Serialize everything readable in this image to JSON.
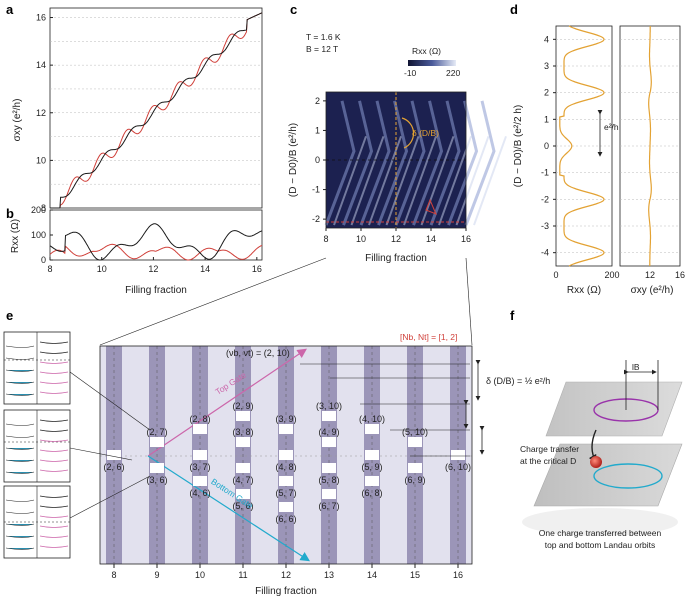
{
  "panels": {
    "a": {
      "label": "a",
      "ylabel": "σxy (e²/h)",
      "yticks": [
        "8",
        "10",
        "12",
        "14",
        "16"
      ]
    },
    "b": {
      "label": "b",
      "ylabel": "Rxx (Ω)",
      "yticks": [
        "0",
        "100",
        "200"
      ],
      "xticks": [
        "8",
        "10",
        "12",
        "14",
        "16"
      ],
      "xlabel": "Filling fraction"
    },
    "c": {
      "label": "c",
      "T": "T = 1.6 K",
      "B": "B = 12 T",
      "cbar_title": "Rxx (Ω)",
      "cbar_min": "-10",
      "cbar_max": "220",
      "ylabel": "(D − D0)/B (e²/h)",
      "yticks": [
        "2",
        "1",
        "0",
        "-1",
        "-2"
      ],
      "xticks": [
        "8",
        "10",
        "12",
        "14",
        "16"
      ],
      "xlabel": "Filling fraction",
      "annotation": "δ (D/B)"
    },
    "d": {
      "label": "d",
      "yticks": [
        "4",
        "3",
        "2",
        "1",
        "0",
        "-1",
        "-2",
        "-3",
        "-4"
      ],
      "ylabel": "(D − D0)/B (e²/2 h)",
      "xlabel_left": "Rxx (Ω)",
      "xlabel_right": "σxy (e²/h)",
      "xticks_left": [
        "0",
        "200"
      ],
      "xticks_right": [
        "12",
        "16"
      ],
      "gap_label": "e²/h"
    },
    "e": {
      "label": "e",
      "legend": "[Nb, Nt] = [1, 2]",
      "top_gate": "Top Gate",
      "bottom_gate": "Bottom Gate",
      "nu_label": "(νb, νt) = (2, 10)",
      "delta": "δ (D/B) = ½ e²/h",
      "xticks": [
        "8",
        "9",
        "10",
        "11",
        "12",
        "13",
        "14",
        "15",
        "16"
      ],
      "xlabel": "Filling fraction",
      "pairs": [
        "(2, 6)",
        "(2, 7)",
        "(3, 6)",
        "(2, 8)",
        "(3, 7)",
        "(4, 6)",
        "(2, 9)",
        "(3, 8)",
        "(4, 7)",
        "(5, 6)",
        "(3, 9)",
        "(4, 8)",
        "(5, 7)",
        "(6, 6)",
        "(3, 10)",
        "(4, 9)",
        "(5, 8)",
        "(6, 7)",
        "(4, 10)",
        "(5, 9)",
        "(6, 8)",
        "(5, 10)",
        "(6, 9)",
        "(6, 10)"
      ]
    },
    "f": {
      "label": "f",
      "lB": "lB",
      "transfer": "Charge transfer at the critical D",
      "caption_1": "One charge transferred between",
      "caption_2": "top and bottom Landau orbits"
    }
  },
  "chart_data": [
    {
      "type": "line",
      "panel": "a",
      "ylabel": "σxy (e²/h)",
      "ylim": [
        8,
        16.4
      ],
      "xlim": [
        8,
        16.2
      ],
      "series": [
        {
          "x": [
            8,
            8.4,
            9,
            10,
            11,
            12,
            13,
            14,
            15,
            15.6,
            16,
            16.2
          ],
          "values": [
            8,
            8,
            9.2,
            10,
            11,
            12,
            13,
            14,
            15,
            15.9,
            16,
            16.2
          ]
        }
      ]
    },
    {
      "type": "line",
      "panel": "b",
      "ylabel": "Rxx (Ω)",
      "xlabel": "Filling fraction",
      "ylim": [
        0,
        200
      ],
      "xlim": [
        8,
        16.2
      ],
      "series": [
        {
          "x": [
            8,
            9,
            10,
            11,
            12,
            13,
            14,
            15,
            16
          ],
          "values": [
            0,
            80,
            130,
            60,
            120,
            80,
            110,
            60,
            20
          ]
        }
      ]
    },
    {
      "type": "heatmap",
      "panel": "c",
      "xlabel": "Filling fraction",
      "ylabel": "(D − D0)/B (e²/h)",
      "xlim": [
        8,
        16
      ],
      "ylim": [
        -2.3,
        2.3
      ],
      "zlim": [
        -10,
        220
      ]
    },
    {
      "type": "line",
      "panel": "d",
      "ylabel": "(D − D0)/B (e²/2 h)",
      "ylim": [
        -4.5,
        4.5
      ]
    }
  ],
  "colors": {
    "black": "#1a1a1a",
    "red": "#d0403a",
    "orange": "#e3a233",
    "purple_band": "#9b95b8",
    "light_band": "#e2e1ee",
    "pink": "#cc66aa",
    "cyan": "#22aacc",
    "heat_dark": "#1c2150",
    "heat_light": "#c8d2ec"
  }
}
